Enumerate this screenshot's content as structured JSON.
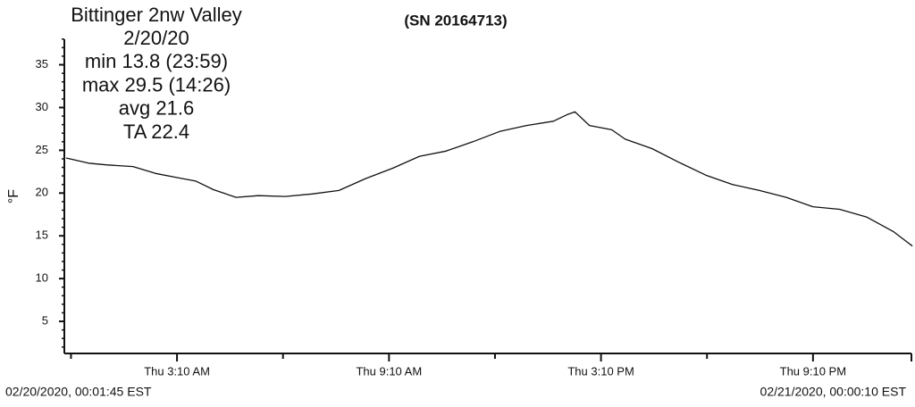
{
  "chart_data": {
    "type": "line",
    "title": "(SN 20164713)",
    "annotations": [
      "Bittinger 2nw Valley",
      "2/20/20",
      "min 13.8 (23:59)",
      "max 29.5 (14:26)",
      "avg  21.6",
      "TA  22.4"
    ],
    "ylabel": "°F",
    "start_label": "02/20/2020, 00:01:45 EST",
    "end_label": "02/21/2020, 00:00:10 EST",
    "xlim": [
      0.029,
      24.003
    ],
    "xticks": [
      {
        "value": 3.1667,
        "label": "Thu 3:10 AM"
      },
      {
        "value": 9.1667,
        "label": "Thu 9:10 AM"
      },
      {
        "value": 15.1667,
        "label": "Thu 3:10 PM"
      },
      {
        "value": 21.1667,
        "label": "Thu 9:10 PM"
      }
    ],
    "minor_xticks": [
      0.1667,
      6.1667,
      12.1667,
      18.1667
    ],
    "ylim": [
      1.25,
      38.5
    ],
    "yticks": [
      5,
      10,
      15,
      20,
      25,
      30,
      35
    ],
    "series": [
      {
        "color": "#111111",
        "x": [
          0.03,
          0.66,
          1.16,
          1.92,
          2.56,
          3.19,
          3.7,
          4.2,
          4.84,
          5.47,
          6.23,
          6.99,
          7.75,
          8.51,
          9.27,
          10.03,
          10.78,
          11.54,
          12.3,
          13.06,
          13.82,
          14.23,
          14.43,
          14.84,
          15.47,
          15.85,
          16.61,
          17.37,
          18.13,
          18.89,
          19.65,
          20.41,
          21.16,
          21.92,
          22.68,
          23.44,
          23.98
        ],
        "values": [
          24.1,
          23.5,
          23.3,
          23.1,
          22.3,
          21.8,
          21.4,
          20.4,
          19.5,
          19.7,
          19.6,
          19.9,
          20.3,
          21.7,
          22.9,
          24.3,
          24.9,
          26.0,
          27.2,
          27.9,
          28.4,
          29.2,
          29.5,
          27.9,
          27.4,
          26.3,
          25.2,
          23.6,
          22.1,
          21.0,
          20.3,
          19.5,
          18.4,
          18.1,
          17.2,
          15.5,
          13.8
        ]
      }
    ]
  }
}
